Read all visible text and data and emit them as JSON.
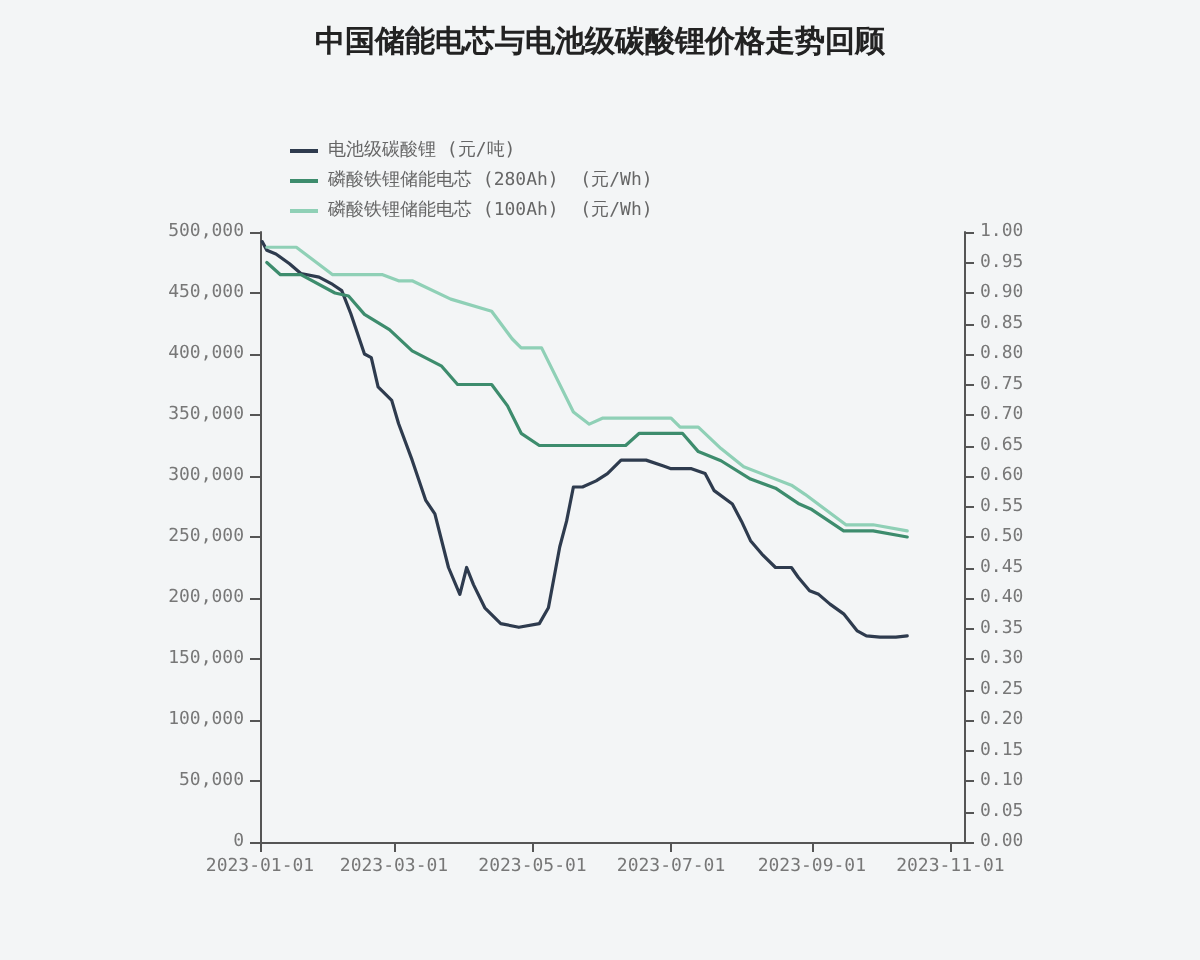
{
  "chart_data": {
    "type": "line",
    "title": "中国储能电芯与电池级碳酸锂价格走势回顾",
    "legend": "top left",
    "marker": "none",
    "line_style": "solid",
    "grid": false,
    "xlim": [
      "2023-01-01",
      "2023-11-07"
    ],
    "xticks": [
      "2023-01-01",
      "2023-03-01",
      "2023-05-01",
      "2023-07-01",
      "2023-09-01",
      "2023-11-01"
    ],
    "ylim": [
      0,
      500000
    ],
    "yticks": [
      {
        "value": 0,
        "label": "0"
      },
      {
        "value": 50000,
        "label": "50,000"
      },
      {
        "value": 100000,
        "label": "100,000"
      },
      {
        "value": 150000,
        "label": "150,000"
      },
      {
        "value": 200000,
        "label": "200,000"
      },
      {
        "value": 250000,
        "label": "250,000"
      },
      {
        "value": 300000,
        "label": "300,000"
      },
      {
        "value": 350000,
        "label": "350,000"
      },
      {
        "value": 400000,
        "label": "400,000"
      },
      {
        "value": 450000,
        "label": "450,000"
      },
      {
        "value": 500000,
        "label": "500,000"
      }
    ],
    "y2lim": [
      0,
      1
    ],
    "y2ticks": [
      {
        "value": 0,
        "label": "0.00"
      },
      {
        "value": 0.05,
        "label": "0.05"
      },
      {
        "value": 0.1,
        "label": "0.10"
      },
      {
        "value": 0.15,
        "label": "0.15"
      },
      {
        "value": 0.2,
        "label": "0.20"
      },
      {
        "value": 0.25,
        "label": "0.25"
      },
      {
        "value": 0.3,
        "label": "0.30"
      },
      {
        "value": 0.35,
        "label": "0.35"
      },
      {
        "value": 0.4,
        "label": "0.40"
      },
      {
        "value": 0.45,
        "label": "0.45"
      },
      {
        "value": 0.5,
        "label": "0.50"
      },
      {
        "value": 0.55,
        "label": "0.55"
      },
      {
        "value": 0.6,
        "label": "0.60"
      },
      {
        "value": 0.65,
        "label": "0.65"
      },
      {
        "value": 0.7,
        "label": "0.70"
      },
      {
        "value": 0.75,
        "label": "0.75"
      },
      {
        "value": 0.8,
        "label": "0.80"
      },
      {
        "value": 0.85,
        "label": "0.85"
      },
      {
        "value": 0.9,
        "label": "0.90"
      },
      {
        "value": 0.95,
        "label": "0.95"
      },
      {
        "value": 1,
        "label": "1.00"
      }
    ],
    "series": [
      {
        "name": "电池级碳酸锂 (元/吨)",
        "color": "#2e3b4e",
        "x": [
          "2023-01-02",
          "2023-01-04",
          "2023-01-08",
          "2023-01-14",
          "2023-01-19",
          "2023-01-27",
          "2023-02-02",
          "2023-02-06",
          "2023-02-10",
          "2023-02-16",
          "2023-02-19",
          "2023-02-22",
          "2023-02-28",
          "2023-03-03",
          "2023-03-09",
          "2023-03-15",
          "2023-03-19",
          "2023-03-25",
          "2023-03-30",
          "2023-04-02",
          "2023-04-05",
          "2023-04-10",
          "2023-04-17",
          "2023-04-25",
          "2023-05-04",
          "2023-05-08",
          "2023-05-13",
          "2023-05-16",
          "2023-05-19",
          "2023-05-23",
          "2023-05-29",
          "2023-06-03",
          "2023-06-09",
          "2023-06-20",
          "2023-06-28",
          "2023-07-01",
          "2023-07-10",
          "2023-07-16",
          "2023-07-20",
          "2023-07-28",
          "2023-08-01",
          "2023-08-05",
          "2023-08-10",
          "2023-08-16",
          "2023-08-23",
          "2023-08-26",
          "2023-08-31",
          "2023-09-04",
          "2023-09-09",
          "2023-09-15",
          "2023-09-21",
          "2023-09-25",
          "2023-10-01",
          "2023-10-08",
          "2023-10-13"
        ],
        "values": [
          492000,
          485000,
          482000,
          474000,
          466000,
          463000,
          457000,
          452000,
          433000,
          400000,
          397000,
          373000,
          362000,
          343000,
          313000,
          280000,
          269000,
          225000,
          203000,
          225000,
          211000,
          192000,
          179000,
          176000,
          179000,
          192000,
          242000,
          263000,
          291000,
          291000,
          296000,
          302000,
          313000,
          313000,
          308000,
          306000,
          306000,
          302000,
          288000,
          277000,
          263000,
          247000,
          236000,
          225000,
          225000,
          217000,
          206000,
          203000,
          195000,
          187000,
          173000,
          169000,
          168000,
          168000,
          169000
        ]
      },
      {
        "name": "磷酸铁锂储能电芯 (280Ah)  (元/Wh)",
        "color": "#3d8c6d",
        "axis": "y2",
        "x": [
          "2023-01-04",
          "2023-01-10",
          "2023-01-19",
          "2023-02-03",
          "2023-02-09",
          "2023-02-16",
          "2023-02-27",
          "2023-03-09",
          "2023-03-22",
          "2023-03-29",
          "2023-04-13",
          "2023-04-20",
          "2023-04-26",
          "2023-05-04",
          "2023-06-11",
          "2023-06-17",
          "2023-07-06",
          "2023-07-13",
          "2023-07-23",
          "2023-08-05",
          "2023-08-16",
          "2023-08-26",
          "2023-09-01",
          "2023-09-15",
          "2023-09-28",
          "2023-10-13"
        ],
        "values": [
          0.95,
          0.93,
          0.93,
          0.9,
          0.895,
          0.865,
          0.84,
          0.805,
          0.78,
          0.75,
          0.75,
          0.715,
          0.67,
          0.65,
          0.65,
          0.67,
          0.67,
          0.64,
          0.625,
          0.595,
          0.58,
          0.555,
          0.545,
          0.51,
          0.51,
          0.5
        ]
      },
      {
        "name": "磷酸铁锂储能电芯 (100Ah)  (元/Wh)",
        "color": "#8fd0b6",
        "axis": "y2",
        "x": [
          "2023-01-04",
          "2023-01-17",
          "2023-02-02",
          "2023-02-24",
          "2023-03-03",
          "2023-03-09",
          "2023-03-26",
          "2023-04-13",
          "2023-04-22",
          "2023-04-26",
          "2023-05-05",
          "2023-05-19",
          "2023-05-26",
          "2023-06-01",
          "2023-07-01",
          "2023-07-05",
          "2023-07-13",
          "2023-07-23",
          "2023-08-02",
          "2023-08-23",
          "2023-08-29",
          "2023-09-16",
          "2023-09-28",
          "2023-10-13"
        ],
        "values": [
          0.975,
          0.975,
          0.93,
          0.93,
          0.92,
          0.92,
          0.89,
          0.87,
          0.825,
          0.81,
          0.81,
          0.705,
          0.685,
          0.695,
          0.695,
          0.68,
          0.68,
          0.645,
          0.615,
          0.585,
          0.57,
          0.52,
          0.52,
          0.51
        ]
      }
    ]
  }
}
